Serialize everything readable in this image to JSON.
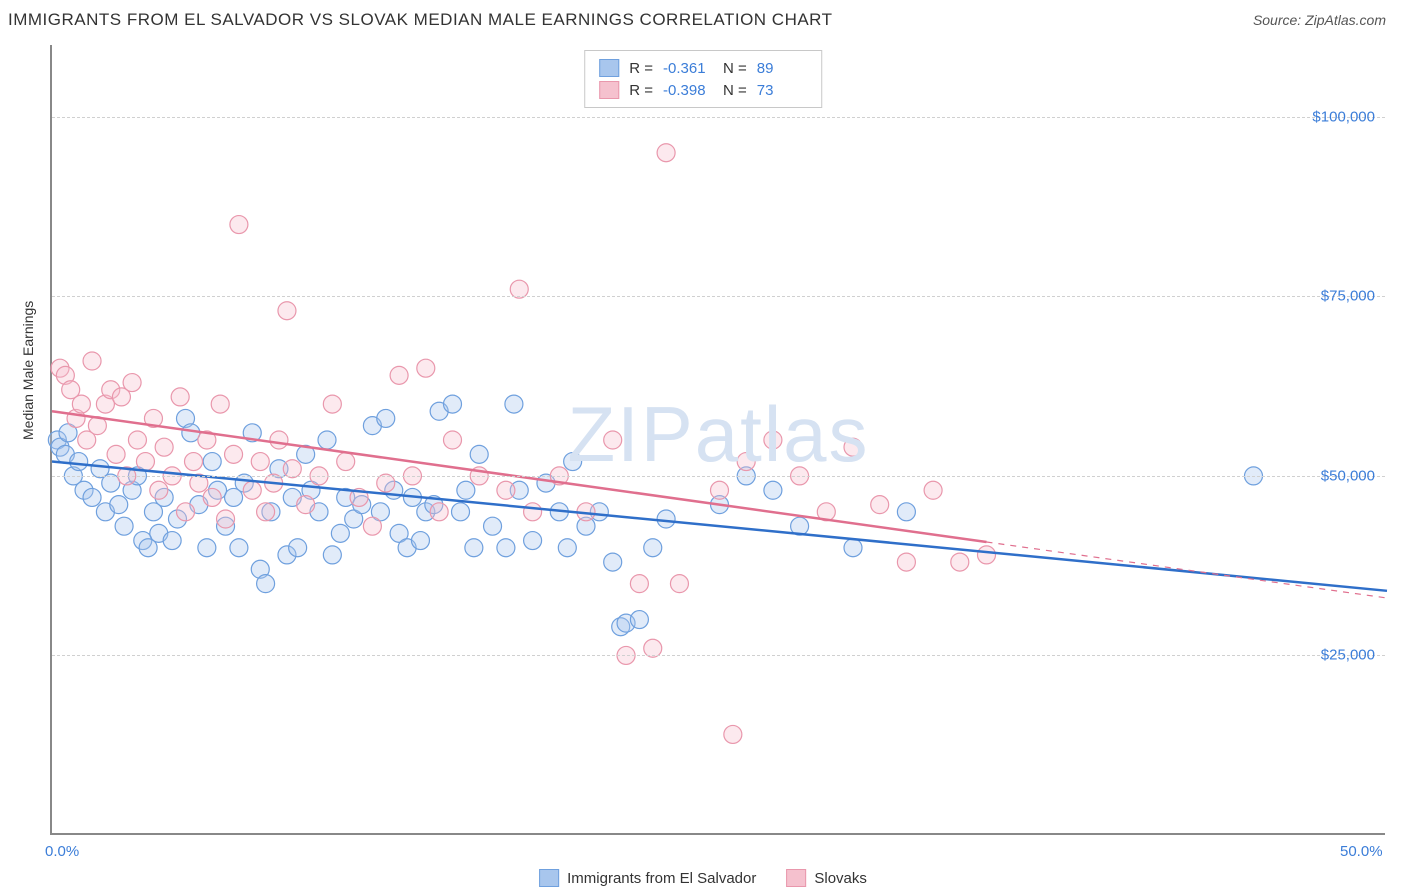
{
  "title": "IMMIGRANTS FROM EL SALVADOR VS SLOVAK MEDIAN MALE EARNINGS CORRELATION CHART",
  "source_label": "Source:",
  "source_value": "ZipAtlas.com",
  "ylabel": "Median Male Earnings",
  "watermark": "ZIPatlas",
  "watermark_color": "#d6e2f2",
  "chart": {
    "type": "scatter",
    "background_color": "#ffffff",
    "grid_color": "#d0d0d0",
    "axis_color": "#888888",
    "xlim": [
      0,
      50
    ],
    "ylim": [
      0,
      110000
    ],
    "xtick_labels": [
      "0.0%",
      "50.0%"
    ],
    "xtick_positions": [
      0,
      50
    ],
    "ytick_labels": [
      "$25,000",
      "$50,000",
      "$75,000",
      "$100,000"
    ],
    "ytick_positions": [
      25000,
      50000,
      75000,
      100000
    ],
    "marker_radius": 9,
    "marker_fill_opacity": 0.35,
    "line_width": 2.5,
    "series": [
      {
        "id": "el_salvador",
        "label": "Immigrants from El Salvador",
        "R": "-0.361",
        "N": "89",
        "color_fill": "#a8c6ed",
        "color_stroke": "#6fa0de",
        "line_color": "#2f6fc9",
        "trend_y_start": 52000,
        "trend_y_end": 34000,
        "trend_x_end_solid": 50,
        "points": [
          [
            0.2,
            55000
          ],
          [
            0.3,
            54000
          ],
          [
            0.5,
            53000
          ],
          [
            0.6,
            56000
          ],
          [
            0.8,
            50000
          ],
          [
            1.0,
            52000
          ],
          [
            1.2,
            48000
          ],
          [
            1.5,
            47000
          ],
          [
            1.8,
            51000
          ],
          [
            2.0,
            45000
          ],
          [
            2.2,
            49000
          ],
          [
            2.5,
            46000
          ],
          [
            2.7,
            43000
          ],
          [
            3.0,
            48000
          ],
          [
            3.2,
            50000
          ],
          [
            3.4,
            41000
          ],
          [
            3.6,
            40000
          ],
          [
            3.8,
            45000
          ],
          [
            4.0,
            42000
          ],
          [
            4.2,
            47000
          ],
          [
            4.5,
            41000
          ],
          [
            4.7,
            44000
          ],
          [
            5.0,
            58000
          ],
          [
            5.2,
            56000
          ],
          [
            5.5,
            46000
          ],
          [
            5.8,
            40000
          ],
          [
            6.0,
            52000
          ],
          [
            6.2,
            48000
          ],
          [
            6.5,
            43000
          ],
          [
            6.8,
            47000
          ],
          [
            7.0,
            40000
          ],
          [
            7.2,
            49000
          ],
          [
            7.5,
            56000
          ],
          [
            7.8,
            37000
          ],
          [
            8.0,
            35000
          ],
          [
            8.2,
            45000
          ],
          [
            8.5,
            51000
          ],
          [
            8.8,
            39000
          ],
          [
            9.0,
            47000
          ],
          [
            9.2,
            40000
          ],
          [
            9.5,
            53000
          ],
          [
            9.7,
            48000
          ],
          [
            10.0,
            45000
          ],
          [
            10.3,
            55000
          ],
          [
            10.5,
            39000
          ],
          [
            10.8,
            42000
          ],
          [
            11.0,
            47000
          ],
          [
            11.3,
            44000
          ],
          [
            11.6,
            46000
          ],
          [
            12.0,
            57000
          ],
          [
            12.3,
            45000
          ],
          [
            12.5,
            58000
          ],
          [
            12.8,
            48000
          ],
          [
            13.0,
            42000
          ],
          [
            13.3,
            40000
          ],
          [
            13.5,
            47000
          ],
          [
            13.8,
            41000
          ],
          [
            14.0,
            45000
          ],
          [
            14.3,
            46000
          ],
          [
            14.5,
            59000
          ],
          [
            15.0,
            60000
          ],
          [
            15.3,
            45000
          ],
          [
            15.5,
            48000
          ],
          [
            15.8,
            40000
          ],
          [
            16.0,
            53000
          ],
          [
            16.5,
            43000
          ],
          [
            17.0,
            40000
          ],
          [
            17.3,
            60000
          ],
          [
            17.5,
            48000
          ],
          [
            18.0,
            41000
          ],
          [
            18.5,
            49000
          ],
          [
            19.0,
            45000
          ],
          [
            19.3,
            40000
          ],
          [
            19.5,
            52000
          ],
          [
            20.0,
            43000
          ],
          [
            20.5,
            45000
          ],
          [
            21.0,
            38000
          ],
          [
            21.3,
            29000
          ],
          [
            21.5,
            29500
          ],
          [
            22.0,
            30000
          ],
          [
            22.5,
            40000
          ],
          [
            23.0,
            44000
          ],
          [
            25.0,
            46000
          ],
          [
            26.0,
            50000
          ],
          [
            27.0,
            48000
          ],
          [
            28.0,
            43000
          ],
          [
            30.0,
            40000
          ],
          [
            32.0,
            45000
          ],
          [
            45.0,
            50000
          ]
        ]
      },
      {
        "id": "slovaks",
        "label": "Slovaks",
        "R": "-0.398",
        "N": "73",
        "color_fill": "#f5c1ce",
        "color_stroke": "#e997ac",
        "line_color": "#e06f8e",
        "trend_y_start": 59000,
        "trend_y_end": 33000,
        "trend_x_end_solid": 35,
        "points": [
          [
            0.3,
            65000
          ],
          [
            0.5,
            64000
          ],
          [
            0.7,
            62000
          ],
          [
            0.9,
            58000
          ],
          [
            1.1,
            60000
          ],
          [
            1.3,
            55000
          ],
          [
            1.5,
            66000
          ],
          [
            1.7,
            57000
          ],
          [
            2.0,
            60000
          ],
          [
            2.2,
            62000
          ],
          [
            2.4,
            53000
          ],
          [
            2.6,
            61000
          ],
          [
            2.8,
            50000
          ],
          [
            3.0,
            63000
          ],
          [
            3.2,
            55000
          ],
          [
            3.5,
            52000
          ],
          [
            3.8,
            58000
          ],
          [
            4.0,
            48000
          ],
          [
            4.2,
            54000
          ],
          [
            4.5,
            50000
          ],
          [
            4.8,
            61000
          ],
          [
            5.0,
            45000
          ],
          [
            5.3,
            52000
          ],
          [
            5.5,
            49000
          ],
          [
            5.8,
            55000
          ],
          [
            6.0,
            47000
          ],
          [
            6.3,
            60000
          ],
          [
            6.5,
            44000
          ],
          [
            6.8,
            53000
          ],
          [
            7.0,
            85000
          ],
          [
            7.5,
            48000
          ],
          [
            7.8,
            52000
          ],
          [
            8.0,
            45000
          ],
          [
            8.3,
            49000
          ],
          [
            8.5,
            55000
          ],
          [
            8.8,
            73000
          ],
          [
            9.0,
            51000
          ],
          [
            9.5,
            46000
          ],
          [
            10.0,
            50000
          ],
          [
            10.5,
            60000
          ],
          [
            11.0,
            52000
          ],
          [
            11.5,
            47000
          ],
          [
            12.0,
            43000
          ],
          [
            12.5,
            49000
          ],
          [
            13.0,
            64000
          ],
          [
            13.5,
            50000
          ],
          [
            14.0,
            65000
          ],
          [
            14.5,
            45000
          ],
          [
            15.0,
            55000
          ],
          [
            16.0,
            50000
          ],
          [
            17.0,
            48000
          ],
          [
            17.5,
            76000
          ],
          [
            18.0,
            45000
          ],
          [
            19.0,
            50000
          ],
          [
            20.0,
            45000
          ],
          [
            21.0,
            55000
          ],
          [
            21.5,
            25000
          ],
          [
            22.0,
            35000
          ],
          [
            22.5,
            26000
          ],
          [
            23.0,
            95000
          ],
          [
            23.5,
            35000
          ],
          [
            25.0,
            48000
          ],
          [
            25.5,
            14000
          ],
          [
            26.0,
            52000
          ],
          [
            27.0,
            55000
          ],
          [
            28.0,
            50000
          ],
          [
            29.0,
            45000
          ],
          [
            30.0,
            54000
          ],
          [
            31.0,
            46000
          ],
          [
            32.0,
            38000
          ],
          [
            33.0,
            48000
          ],
          [
            34.0,
            38000
          ],
          [
            35.0,
            39000
          ]
        ]
      }
    ]
  },
  "legend_top_labels": {
    "R": "R =",
    "N": "N ="
  }
}
